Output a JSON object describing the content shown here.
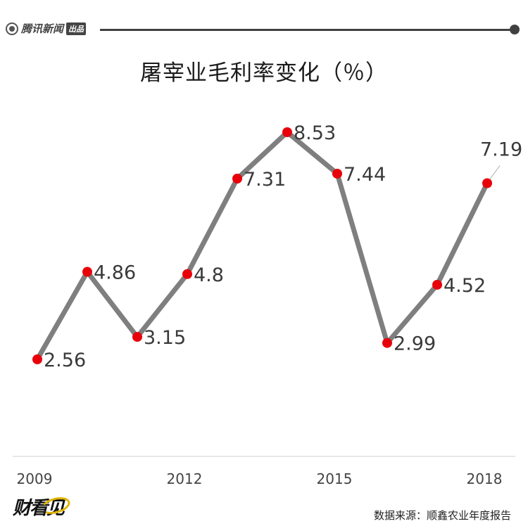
{
  "header": {
    "brand_name": "腾讯新闻",
    "brand_tag": "出品"
  },
  "chart_data": {
    "type": "line",
    "title": "屠宰业毛利率变化（％）",
    "x": [
      2009,
      2010,
      2011,
      2012,
      2013,
      2014,
      2015,
      2016,
      2017,
      2018
    ],
    "series": [
      {
        "values": [
          2.56,
          4.86,
          3.15,
          4.8,
          7.31,
          8.53,
          7.44,
          2.99,
          4.52,
          7.19
        ]
      }
    ],
    "data_labels": [
      "2.56",
      "4.86",
      "3.15",
      "4.8",
      "7.31",
      "8.53",
      "7.44",
      "2.99",
      "4.52",
      "7.19"
    ],
    "x_tick_labels": [
      {
        "x": 2009,
        "label": "2009"
      },
      {
        "x": 2012,
        "label": "2012"
      },
      {
        "x": 2015,
        "label": "2015"
      },
      {
        "x": 2018,
        "label": "2018"
      }
    ],
    "line_color": "#7f7f7f",
    "marker_color": "#e8000a",
    "grid": false,
    "xlabel": "",
    "ylabel": ""
  },
  "footer": {
    "logo_text": "财看见",
    "source": "数据来源：顺鑫农业年度报告"
  }
}
